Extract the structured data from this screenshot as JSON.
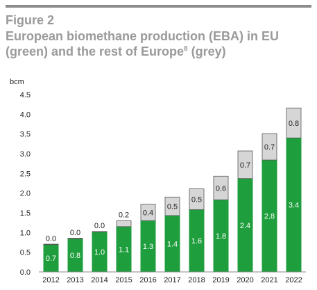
{
  "header": {
    "figure_label": "Figure 2",
    "title_main": "European biomethane production (EBA) in EU (green) and the rest of Europe",
    "title_sup": "8",
    "title_end": " (grey)"
  },
  "colors": {
    "eu": "#1e9e3c",
    "rest": "#d6d6d6",
    "rest_stroke": "#555555",
    "axis": "#888888",
    "title": "#9a9a9a"
  },
  "chart_data": {
    "type": "bar",
    "stacked": true,
    "ylabel": "bcm",
    "ylim": [
      0,
      4.5
    ],
    "yticks": [
      "0.0",
      "0.5",
      "1.0",
      "1.5",
      "2.0",
      "2.5",
      "3.0",
      "3.5",
      "4.0",
      "4.5"
    ],
    "categories": [
      "2012",
      "2013",
      "2014",
      "2015",
      "2016",
      "2017",
      "2018",
      "2019",
      "2020",
      "2021",
      "2022"
    ],
    "series": [
      {
        "name": "EU",
        "values": [
          0.7,
          0.85,
          1.02,
          1.15,
          1.3,
          1.43,
          1.58,
          1.83,
          2.37,
          2.84,
          3.4
        ],
        "labels": [
          "0.7",
          "0.8",
          "1.0",
          "1.1",
          "1.3",
          "1.4",
          "1.6",
          "1.8",
          "2.4",
          "2.8",
          "3.4"
        ]
      },
      {
        "name": "Rest of Europe",
        "values": [
          0.0,
          0.0,
          0.0,
          0.15,
          0.42,
          0.47,
          0.53,
          0.6,
          0.7,
          0.67,
          0.76
        ],
        "labels": [
          "0.0",
          "0.0",
          "0.0",
          "0.2",
          "0.4",
          "0.5",
          "0.5",
          "0.6",
          "0.7",
          "0.7",
          "0.8"
        ]
      }
    ]
  }
}
